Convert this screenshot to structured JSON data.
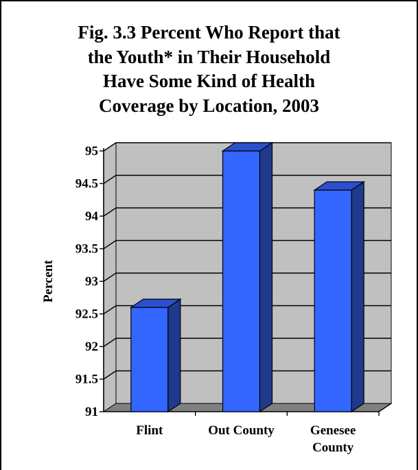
{
  "chart_data": {
    "type": "bar",
    "title": "Fig. 3.3 Percent Who Report that\nthe Youth* in Their Household\nHave Some Kind of Health\nCoverage by Location, 2003",
    "xlabel": "",
    "ylabel": "Percent",
    "categories": [
      "Flint",
      "Out County",
      "Genesee\nCounty"
    ],
    "values": [
      92.6,
      95.0,
      94.4
    ],
    "ylim": [
      91,
      95
    ],
    "yticks": [
      "91",
      "91.5",
      "92",
      "92.5",
      "93",
      "93.5",
      "94",
      "94.5",
      "95"
    ],
    "grid": true,
    "legend": "none",
    "style": "3d-column"
  },
  "colors": {
    "bar_front": "#3366ff",
    "bar_side": "#1f3a8a",
    "bar_top": "#2b4fcf",
    "wall": "#c0c0c0",
    "floor": "#808080",
    "frame_border": "#000000"
  }
}
